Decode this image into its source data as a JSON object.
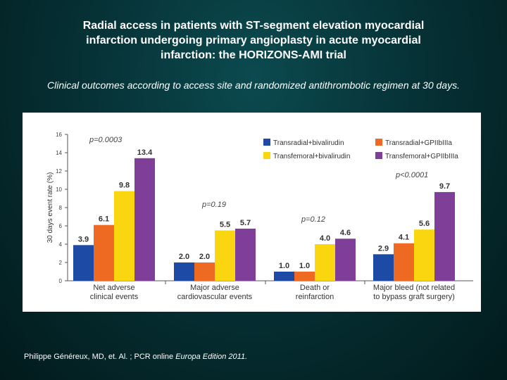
{
  "slide": {
    "title": "Radial access in patients with ST-segment elevation myocardial\ninfarction undergoing primary angioplasty in acute myocardial\ninfarction: the HORIZONS-AMI trial",
    "subtitle": "Clinical outcomes according to access site and randomized antithrombotic regimen at 30 days.",
    "citation_text": "Philippe Généreux, MD, et. Al. ; PCR online ",
    "citation_journal": "Europa Edition 2011."
  },
  "colors": {
    "Transradial+bivalirudin": "#1d4aa4",
    "Transradial+GPIIbIIIa": "#ee6a22",
    "Transfemoral+bivalirudin": "#fad611",
    "Transfemoral+GPIIbIIIa": "#7f3f98"
  },
  "chart_data": {
    "type": "bar",
    "title": "",
    "xlabel": "",
    "ylabel": "30 days event rate (%)",
    "ylim": [
      0,
      16
    ],
    "yticks": [
      0,
      2,
      4,
      6,
      8,
      10,
      12,
      14,
      16
    ],
    "grid": false,
    "legend_position": "top-right",
    "categories": [
      "Net adverse\nclinical events",
      "Major adverse\ncardiovascular events",
      "Death or\nreinfarction",
      "Major bleed (not related\nto bypass graft surgery)"
    ],
    "series": [
      {
        "name": "Transradial+bivalirudin",
        "values": [
          3.9,
          2.0,
          1.0,
          2.9
        ]
      },
      {
        "name": "Transradial+GPIIbIIIa",
        "values": [
          6.1,
          2.0,
          1.0,
          4.1
        ]
      },
      {
        "name": "Transfemoral+bivalirudin",
        "values": [
          9.8,
          5.5,
          4.0,
          5.6
        ]
      },
      {
        "name": "Transfemoral+GPIIbIIIa",
        "values": [
          13.4,
          5.7,
          4.6,
          9.7
        ]
      }
    ],
    "p_values": [
      "p=0.0003",
      "p=0.19",
      "p=0.12",
      "p<0.0001"
    ]
  }
}
